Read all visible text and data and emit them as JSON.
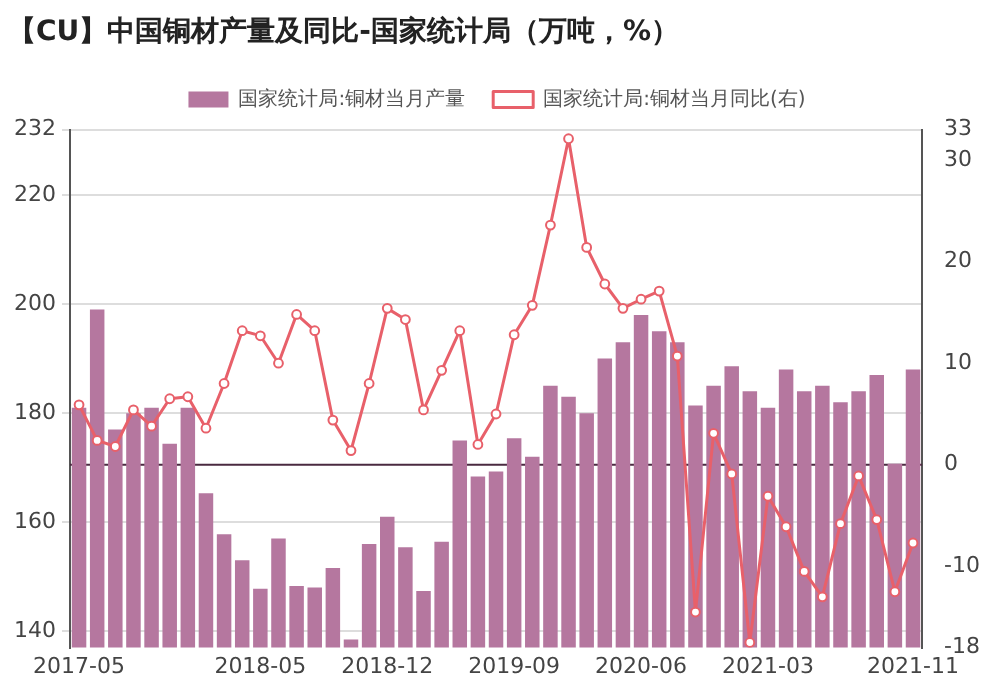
{
  "chart_data": {
    "type": "bar",
    "title": "【CU】中国铜材产量及同比-国家统计局（万吨，%）",
    "categories": [
      "2017-05",
      null,
      null,
      null,
      null,
      null,
      null,
      null,
      null,
      null,
      "2018-05",
      null,
      null,
      null,
      null,
      null,
      null,
      "2018-12",
      null,
      null,
      null,
      null,
      null,
      null,
      "2019-09",
      null,
      null,
      null,
      null,
      null,
      null,
      "2020-06",
      null,
      null,
      null,
      null,
      null,
      null,
      "2021-03",
      null,
      null,
      null,
      null,
      null,
      null,
      null,
      "2021-11"
    ],
    "series": [
      {
        "name": "国家统计局:铜材当月产量",
        "color": "#b5779f",
        "values": [
          181,
          199,
          177,
          180,
          181,
          174.4,
          181,
          165.3,
          157.8,
          153,
          147.8,
          157,
          148.3,
          148,
          151.6,
          138.5,
          156,
          161,
          155.4,
          147.4,
          156.4,
          175,
          168.4,
          169.3,
          175.4,
          172,
          185,
          183,
          180,
          190,
          193,
          198,
          195,
          193,
          181.4,
          185,
          188.6,
          184,
          181,
          188,
          184,
          185,
          182,
          184,
          187,
          170.7,
          188
        ]
      },
      {
        "type": "line",
        "name": "国家统计局:铜材当月同比(右)",
        "color": "#e8606a",
        "axis": "y2",
        "values": [
          5.9,
          2.4,
          1.8,
          5.4,
          3.8,
          6.5,
          6.7,
          3.6,
          8,
          13.2,
          12.7,
          10,
          14.8,
          13.2,
          4.4,
          1.4,
          8,
          15.4,
          14.3,
          5.4,
          9.3,
          13.2,
          2.0,
          5.0,
          12.8,
          15.7,
          23.6,
          32.1,
          21.4,
          17.8,
          15.4,
          16.3,
          17.1,
          10.7,
          -14.5,
          3.1,
          -0.9,
          -17.5,
          -3.1,
          -6.1,
          -10.5,
          -13.0,
          -5.8,
          -1.1,
          -5.4,
          -12.5,
          -7.7
        ]
      }
    ],
    "ylim": [
      137,
      232
    ],
    "yticks": [
      140,
      160,
      180,
      200,
      220,
      232
    ],
    "y2lim": [
      -18,
      33
    ],
    "y2ticks": [
      -18,
      -10,
      0,
      10,
      20,
      30,
      33
    ],
    "ref_lines": [
      {
        "axis": "y2",
        "value": 0,
        "color": "#4a2a40"
      }
    ],
    "grid": "y",
    "legend": "top",
    "marker": "circle"
  }
}
